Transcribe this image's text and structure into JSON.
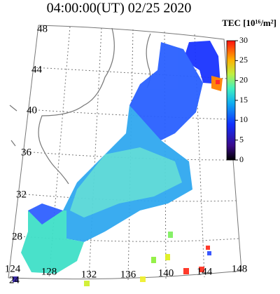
{
  "title": "04:00:00(UT)  02/25 2020",
  "colorbar": {
    "label": "TEC [10¹⁶/m²]",
    "lim": [
      0,
      30
    ],
    "ticks": [
      0,
      5,
      10,
      15,
      20,
      25,
      30
    ]
  },
  "lat_labels": [
    "48",
    "44",
    "40",
    "36",
    "32",
    "28",
    "24"
  ],
  "lon_labels": [
    "124",
    "128",
    "132",
    "136",
    "140",
    "144",
    "148"
  ]
}
